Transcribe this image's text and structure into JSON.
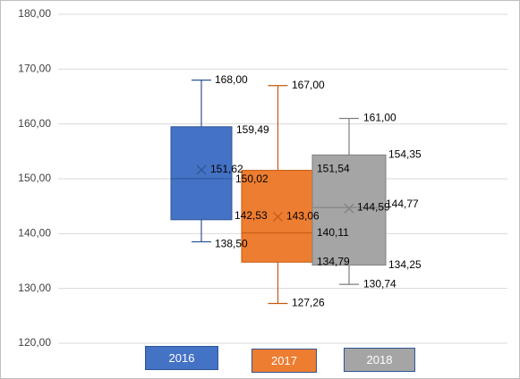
{
  "chart_data": {
    "type": "box",
    "title": "",
    "xlabel": "",
    "ylabel": "",
    "ylim": [
      120,
      180
    ],
    "yticks": [
      "120,00",
      "130,00",
      "140,00",
      "150,00",
      "160,00",
      "170,00",
      "180,00"
    ],
    "grid": true,
    "legend_position": "bottom",
    "series": [
      {
        "name": "2016",
        "color": "#4472c4",
        "min": 138.5,
        "q1": 142.53,
        "median": 150.02,
        "q3": 159.49,
        "max": 168.0,
        "mean": 151.62,
        "labels": {
          "min": "138,50",
          "q1": "142,53",
          "median": "150,02",
          "q3": "159,49",
          "max": "168,00",
          "mean": "151,62"
        }
      },
      {
        "name": "2017",
        "color": "#ed7d31",
        "min": 127.26,
        "q1": 134.79,
        "median": 140.11,
        "q3": 151.54,
        "max": 167.0,
        "mean": 143.06,
        "labels": {
          "min": "127,26",
          "q1": "134,79",
          "median": "140,11",
          "q3": "151,54",
          "max": "167,00",
          "mean": "143,06"
        }
      },
      {
        "name": "2018",
        "color": "#a5a5a5",
        "min": 130.74,
        "q1": 134.25,
        "median": 144.77,
        "q3": 154.35,
        "max": 161.0,
        "mean": 144.59,
        "labels": {
          "min": "130,74",
          "q1": "134,25",
          "median": "144,77",
          "q3": "154,35",
          "max": "161,00",
          "mean": "144,59"
        }
      }
    ]
  },
  "legend": {
    "items": [
      "2016",
      "2017",
      "2018"
    ]
  }
}
